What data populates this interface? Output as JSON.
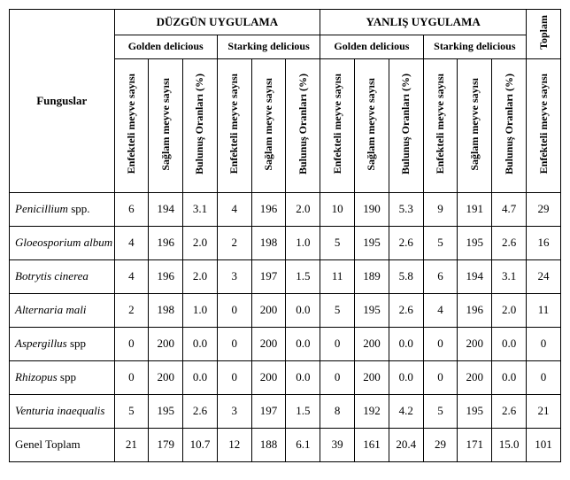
{
  "header": {
    "corner": "Funguslar",
    "groups": [
      "DÜZGÜN UYGULAMA",
      "YANLIŞ UYGULAMA"
    ],
    "total_group": "Toplam",
    "varieties": [
      "Golden delicious",
      "Starking delicious",
      "Golden delicious",
      "Starking delicious"
    ],
    "sub": {
      "inf": "Enfekteli meyve sayısı",
      "hlt": "Sağlam meyve sayısı",
      "pct": "Bulunuş Oranları (%)"
    },
    "total_col": "Enfekteli meyve sayısı"
  },
  "rows": [
    {
      "label_it": "Penicillium",
      "label_rm": " spp.",
      "v": [
        "6",
        "194",
        "3.1",
        "4",
        "196",
        "2.0",
        "10",
        "190",
        "5.3",
        "9",
        "191",
        "4.7",
        "29"
      ]
    },
    {
      "label_it": "Gloeosporium album",
      "label_rm": "",
      "v": [
        "4",
        "196",
        "2.0",
        "2",
        "198",
        "1.0",
        "5",
        "195",
        "2.6",
        "5",
        "195",
        "2.6",
        "16"
      ]
    },
    {
      "label_it": "Botrytis cinerea",
      "label_rm": "",
      "v": [
        "4",
        "196",
        "2.0",
        "3",
        "197",
        "1.5",
        "11",
        "189",
        "5.8",
        "6",
        "194",
        "3.1",
        "24"
      ]
    },
    {
      "label_it": "Alternaria mali",
      "label_rm": "",
      "v": [
        "2",
        "198",
        "1.0",
        "0",
        "200",
        "0.0",
        "5",
        "195",
        "2.6",
        "4",
        "196",
        "2.0",
        "11"
      ]
    },
    {
      "label_it": "Aspergillus",
      "label_rm": " spp",
      "v": [
        "0",
        "200",
        "0.0",
        "0",
        "200",
        "0.0",
        "0",
        "200",
        "0.0",
        "0",
        "200",
        "0.0",
        "0"
      ]
    },
    {
      "label_it": "Rhizopus",
      "label_rm": " spp",
      "v": [
        "0",
        "200",
        "0.0",
        "0",
        "200",
        "0.0",
        "0",
        "200",
        "0.0",
        "0",
        "200",
        "0.0",
        "0"
      ]
    },
    {
      "label_it": "Venturia inaequalis",
      "label_rm": "",
      "v": [
        "5",
        "195",
        "2.6",
        "3",
        "197",
        "1.5",
        "8",
        "192",
        "4.2",
        "5",
        "195",
        "2.6",
        "21"
      ]
    },
    {
      "label_it": "",
      "label_rm": "Genel Toplam",
      "v": [
        "21",
        "179",
        "10.7",
        "12",
        "188",
        "6.1",
        "39",
        "161",
        "20.4",
        "29",
        "171",
        "15.0",
        "101"
      ]
    }
  ],
  "style": {
    "font": "Times New Roman",
    "border_color": "#000000",
    "bg": "#ffffff"
  }
}
